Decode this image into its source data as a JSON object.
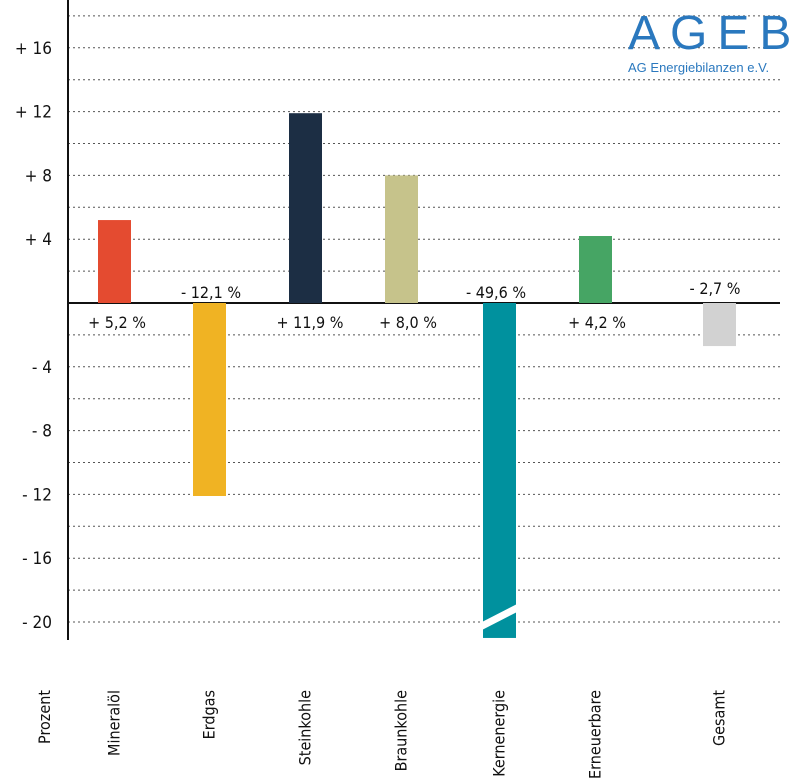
{
  "chart_data": {
    "type": "bar",
    "title": "",
    "ylabel": "Prozent",
    "xlabel": "",
    "ylim": [
      -21,
      18
    ],
    "yticks": [
      16,
      12,
      8,
      4,
      -4,
      -8,
      -12,
      -16,
      -20
    ],
    "ytick_labels": [
      "+ 16",
      "+ 12",
      "+ 8",
      "+ 4",
      "- 4",
      "- 8",
      "- 12",
      "- 16",
      "- 20"
    ],
    "grid": true,
    "categories": [
      "Mineralöl",
      "Erdgas",
      "Steinkohle",
      "Braunkohle",
      "Kernenergie",
      "Erneuerbare",
      "Gesamt"
    ],
    "values": [
      5.2,
      -12.1,
      11.9,
      8.0,
      -49.6,
      4.2,
      -2.7
    ],
    "data_labels": [
      "+ 5,2 %",
      "- 12,1 %",
      "+ 11,9 %",
      "+ 8,0 %",
      "- 49,6 %",
      "+ 4,2 %",
      "- 2,7 %"
    ],
    "colors": [
      "#e44b30",
      "#f0b323",
      "#1c2e44",
      "#c6c38b",
      "#00919e",
      "#46a564",
      "#d2d2d2"
    ],
    "truncated": [
      false,
      false,
      false,
      false,
      true,
      false,
      false
    ]
  },
  "logo": {
    "title": "AGEB",
    "subtitle": "AG Energiebilanzen e.V."
  }
}
